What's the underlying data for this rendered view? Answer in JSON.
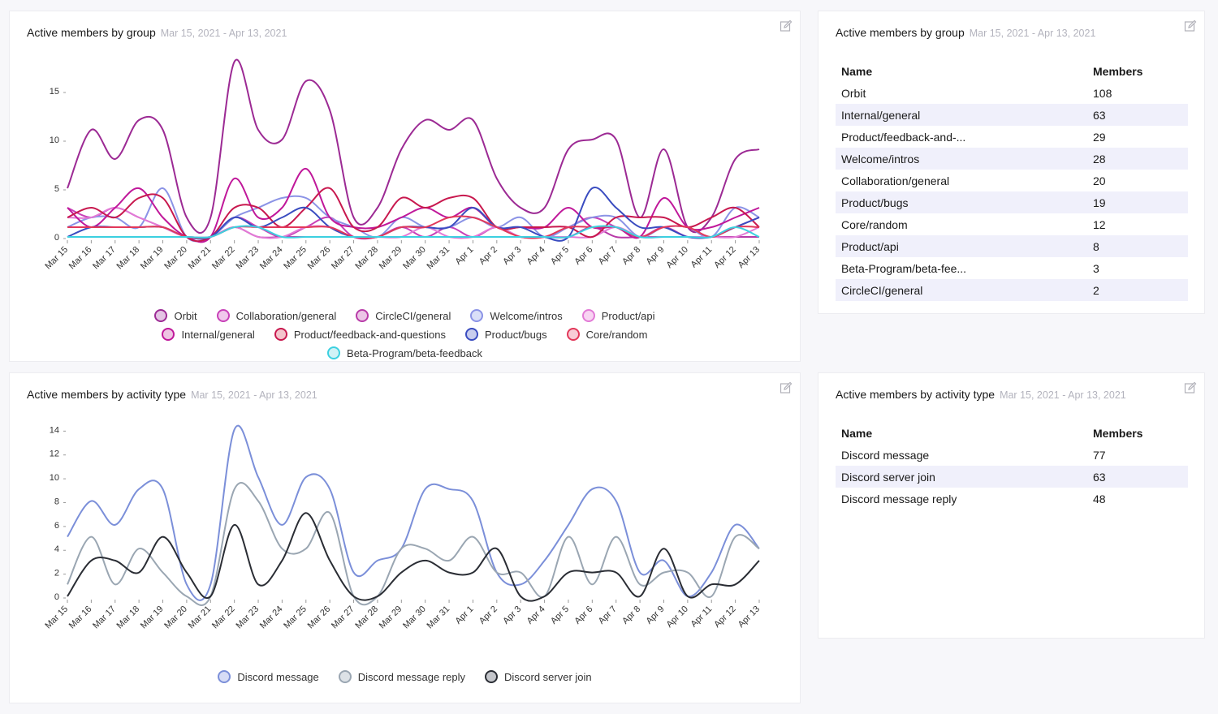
{
  "dates": [
    "Mar 15",
    "Mar 16",
    "Mar 17",
    "Mar 18",
    "Mar 19",
    "Mar 20",
    "Mar 21",
    "Mar 22",
    "Mar 23",
    "Mar 24",
    "Mar 25",
    "Mar 26",
    "Mar 27",
    "Mar 28",
    "Mar 29",
    "Mar 30",
    "Mar 31",
    "Apr 1",
    "Apr 2",
    "Apr 3",
    "Apr 4",
    "Apr 5",
    "Apr 6",
    "Apr 7",
    "Apr 8",
    "Apr 9",
    "Apr 10",
    "Apr 11",
    "Apr 12",
    "Apr 13"
  ],
  "groups_chart": {
    "title": "Active members by group",
    "date_range": "Mar 15, 2021 - Apr 13, 2021",
    "chart_data": {
      "type": "line",
      "title": "Active members by group",
      "ylim": [
        0,
        18
      ],
      "yticks": [
        0,
        5,
        10,
        15
      ],
      "series": [
        {
          "name": "Orbit",
          "color": "#9c2a94",
          "fill": "#e4c4e4",
          "values": [
            5,
            11,
            8,
            12,
            11,
            2,
            2,
            18,
            11,
            10,
            16,
            13,
            2,
            3,
            9,
            12,
            11,
            12,
            6,
            3,
            3,
            9,
            10,
            10,
            2,
            9,
            1,
            2,
            8,
            9
          ]
        },
        {
          "name": "Collaboration/general",
          "color": "#c840b8",
          "fill": "#f0c8ec",
          "values": [
            3,
            2,
            3,
            2,
            1,
            0,
            0,
            2,
            1,
            0,
            1,
            2,
            0,
            0,
            1,
            0,
            1,
            0,
            1,
            0,
            0,
            1,
            2,
            1,
            0,
            1,
            0,
            0,
            1,
            2
          ]
        },
        {
          "name": "CircleCI/general",
          "color": "#b83aa8",
          "fill": "#ecc6e6",
          "values": [
            0,
            0,
            0,
            0,
            0,
            0,
            0,
            1,
            0,
            0,
            0,
            0,
            0,
            0,
            0,
            0,
            0,
            0,
            0,
            0,
            0,
            0,
            1,
            0,
            0,
            0,
            0,
            0,
            0,
            0
          ]
        },
        {
          "name": "Welcome/intros",
          "color": "#8b93e6",
          "fill": "#dadff8",
          "values": [
            1,
            2,
            2,
            1,
            5,
            0,
            0,
            2,
            3,
            4,
            4,
            2,
            1,
            0,
            2,
            1,
            1,
            2,
            1,
            2,
            0,
            1,
            2,
            2,
            0,
            1,
            1,
            0,
            3,
            2
          ]
        },
        {
          "name": "Product/api",
          "color": "#e27ad6",
          "fill": "#f8d4f2",
          "values": [
            2,
            2,
            3,
            2,
            1,
            0,
            0,
            1,
            0,
            0,
            1,
            1,
            0,
            0,
            0,
            1,
            0,
            0,
            1,
            0,
            0,
            0,
            0,
            1,
            0,
            0,
            0,
            0,
            0,
            1
          ]
        },
        {
          "name": "Internal/general",
          "color": "#c0189a",
          "fill": "#eec4e2",
          "values": [
            3,
            1,
            3,
            5,
            2,
            0,
            0,
            6,
            2,
            3,
            7,
            2,
            1,
            1,
            2,
            3,
            2,
            3,
            1,
            1,
            1,
            3,
            1,
            1,
            0,
            4,
            1,
            1,
            2,
            3
          ]
        },
        {
          "name": "Product/feedback-and-questions",
          "color": "#c8184e",
          "fill": "#f4c4cc",
          "values": [
            2,
            3,
            2,
            4,
            4,
            0,
            0,
            3,
            3,
            1,
            3,
            5,
            1,
            1,
            4,
            3,
            4,
            4,
            1,
            1,
            1,
            1,
            0,
            2,
            2,
            2,
            1,
            2,
            3,
            1
          ]
        },
        {
          "name": "Product/bugs",
          "color": "#3a4cc0",
          "fill": "#c8cdee",
          "values": [
            0,
            1,
            1,
            1,
            1,
            0,
            0,
            2,
            1,
            2,
            3,
            1,
            0,
            0,
            1,
            1,
            1,
            3,
            1,
            1,
            0,
            0,
            5,
            3,
            1,
            1,
            0,
            0,
            1,
            2
          ]
        },
        {
          "name": "Core/random",
          "color": "#e2385a",
          "fill": "#f8ccd6",
          "values": [
            1,
            1,
            1,
            1,
            1,
            0,
            0,
            1,
            1,
            1,
            1,
            1,
            0,
            0,
            1,
            1,
            2,
            2,
            1,
            0,
            0,
            1,
            1,
            1,
            0,
            1,
            1,
            0,
            1,
            1
          ]
        },
        {
          "name": "Beta-Program/beta-feedback",
          "color": "#3cd0e0",
          "fill": "#d0f2f6",
          "values": [
            0,
            0,
            0,
            0,
            0,
            0,
            0,
            1,
            1,
            0,
            0,
            0,
            0,
            0,
            0,
            0,
            0,
            0,
            0,
            0,
            0,
            0,
            1,
            1,
            0,
            0,
            0,
            0,
            1,
            0
          ]
        }
      ]
    },
    "edit_label": "edit"
  },
  "activity_chart": {
    "title": "Active members by activity type",
    "date_range": "Mar 15, 2021 - Apr 13, 2021",
    "chart_data": {
      "type": "line",
      "title": "Active members by activity type",
      "ylim": [
        0,
        14.5
      ],
      "yticks": [
        0,
        2,
        4,
        6,
        8,
        10,
        12,
        14
      ],
      "series": [
        {
          "name": "Discord message",
          "color": "#7b8fd9",
          "fill": "#d6dcf6",
          "values": [
            5,
            8,
            6,
            9,
            9,
            1,
            1,
            14,
            10,
            6,
            10,
            9,
            2,
            3,
            4,
            9,
            9,
            8,
            2,
            1,
            3,
            6,
            9,
            8,
            2,
            3,
            0,
            2,
            6,
            4
          ]
        },
        {
          "name": "Discord message reply",
          "color": "#9aa6b2",
          "fill": "#dde2e7",
          "values": [
            1,
            5,
            1,
            4,
            2,
            0,
            0,
            9,
            8,
            4,
            4,
            7,
            0,
            0,
            4,
            4,
            3,
            5,
            2,
            2,
            0,
            5,
            1,
            5,
            1,
            2,
            2,
            0,
            5,
            4
          ]
        },
        {
          "name": "Discord server join",
          "color": "#2a2d34",
          "fill": "#c4c6cb",
          "values": [
            0,
            3,
            3,
            2,
            5,
            2,
            0,
            6,
            1,
            3,
            7,
            3,
            0,
            0,
            2,
            3,
            2,
            2,
            4,
            0,
            0,
            2,
            2,
            2,
            0,
            4,
            0,
            1,
            1,
            3
          ]
        }
      ]
    },
    "edit_label": "edit"
  },
  "groups_table": {
    "title": "Active members by group",
    "date_range": "Mar 15, 2021 - Apr 13, 2021",
    "columns": [
      "Name",
      "Members"
    ],
    "rows": [
      {
        "name": "Orbit",
        "members": "108"
      },
      {
        "name": "Internal/general",
        "members": "63"
      },
      {
        "name": "Product/feedback-and-...",
        "members": "29"
      },
      {
        "name": "Welcome/intros",
        "members": "28"
      },
      {
        "name": "Collaboration/general",
        "members": "20"
      },
      {
        "name": "Product/bugs",
        "members": "19"
      },
      {
        "name": "Core/random",
        "members": "12"
      },
      {
        "name": "Product/api",
        "members": "8"
      },
      {
        "name": "Beta-Program/beta-fee...",
        "members": "3"
      },
      {
        "name": "CircleCI/general",
        "members": "2"
      }
    ]
  },
  "activity_table": {
    "title": "Active members by activity type",
    "date_range": "Mar 15, 2021 - Apr 13, 2021",
    "columns": [
      "Name",
      "Members"
    ],
    "rows": [
      {
        "name": "Discord message",
        "members": "77"
      },
      {
        "name": "Discord server join",
        "members": "63"
      },
      {
        "name": "Discord message reply",
        "members": "48"
      }
    ]
  }
}
